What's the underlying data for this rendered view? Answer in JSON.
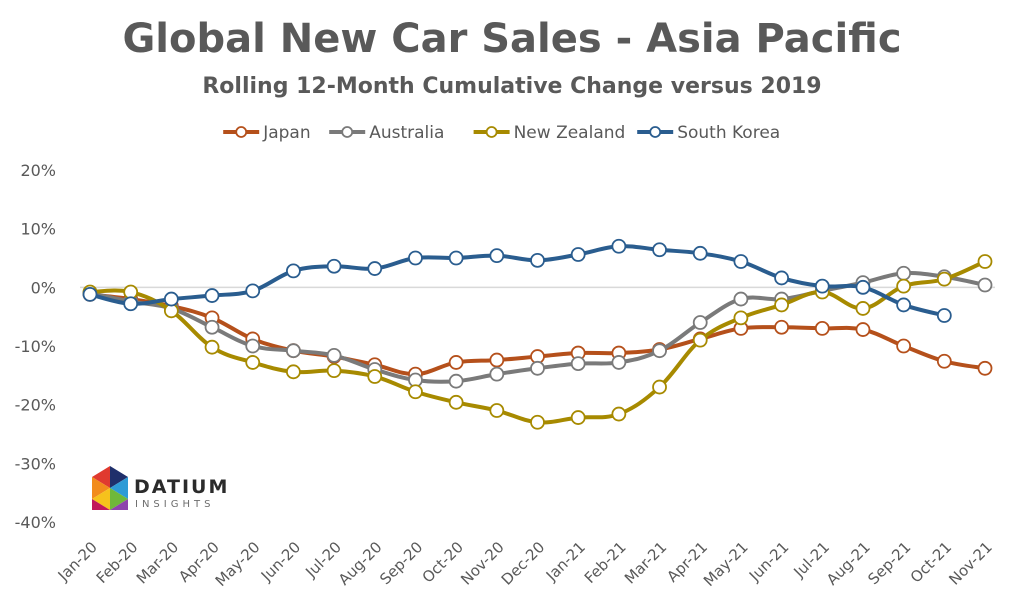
{
  "chart_data": {
    "type": "line",
    "title": "Global New Car Sales - Asia Pacific",
    "subtitle": "Rolling 12-Month Cumulative Change versus 2019",
    "categories": [
      "Jan-20",
      "Feb-20",
      "Mar-20",
      "Apr-20",
      "May-20",
      "Jun-20",
      "Jul-20",
      "Aug-20",
      "Sep-20",
      "Oct-20",
      "Nov-20",
      "Dec-20",
      "Jan-21",
      "Feb-21",
      "Mar-21",
      "Apr-21",
      "May-21",
      "Jun-21",
      "Jul-21",
      "Aug-21",
      "Sep-21",
      "Oct-21",
      "Nov-21"
    ],
    "ylim": [
      -40,
      20
    ],
    "yticks": [
      20,
      10,
      0,
      -10,
      -20,
      -30,
      -40
    ],
    "ytick_labels": [
      "20%",
      "10%",
      "0%",
      "-10%",
      "-20%",
      "-30%",
      "-40%"
    ],
    "legend_position": "top",
    "series": [
      {
        "name": "Japan",
        "color": "#b5501b",
        "values": [
          -1.2,
          -2.0,
          -3.2,
          -5.2,
          -8.8,
          -10.8,
          -11.8,
          -13.2,
          -14.8,
          -12.8,
          -12.4,
          -11.8,
          -11.2,
          -11.2,
          -10.6,
          -8.8,
          -7.0,
          -6.8,
          -7.0,
          -7.2,
          -10.0,
          -12.6,
          -13.8
        ]
      },
      {
        "name": "Australia",
        "color": "#7a7a7a",
        "values": [
          -1.0,
          -2.4,
          -3.6,
          -6.8,
          -10.0,
          -10.8,
          -11.6,
          -14.0,
          -15.8,
          -16.0,
          -14.8,
          -13.8,
          -13.0,
          -12.8,
          -10.8,
          -6.0,
          -2.0,
          -2.0,
          -0.6,
          0.8,
          2.4,
          1.8,
          0.4
        ]
      },
      {
        "name": "New Zealand",
        "color": "#a78a00",
        "values": [
          -0.8,
          -0.8,
          -4.0,
          -10.2,
          -12.8,
          -14.4,
          -14.2,
          -15.2,
          -17.8,
          -19.6,
          -21.0,
          -23.0,
          -22.2,
          -21.6,
          -17.0,
          -9.0,
          -5.2,
          -3.0,
          -0.8,
          -3.6,
          0.2,
          1.4,
          4.4
        ]
      },
      {
        "name": "South Korea",
        "color": "#2a5d8f",
        "values": [
          -1.2,
          -2.8,
          -2.0,
          -1.4,
          -0.6,
          2.8,
          3.6,
          3.2,
          5.0,
          5.0,
          5.4,
          4.6,
          5.6,
          7.0,
          6.4,
          5.8,
          4.4,
          1.6,
          0.2,
          0.0,
          -3.0,
          -4.8,
          null
        ]
      }
    ]
  },
  "logo": {
    "name": "DATIUM",
    "sub": "INSIGHTS"
  }
}
